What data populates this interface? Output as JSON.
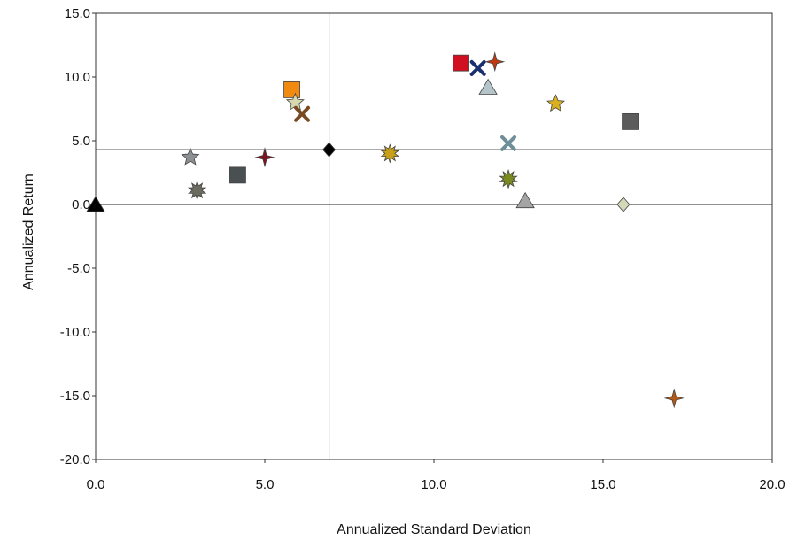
{
  "chart_data": {
    "type": "scatter",
    "title": "",
    "xlabel": "Annualized Standard Deviation",
    "ylabel": "Annualized Return",
    "xlim": [
      0,
      20
    ],
    "ylim": [
      -20,
      15
    ],
    "x_ticks": [
      "0.0",
      "5.0",
      "10.0",
      "15.0",
      "20.0"
    ],
    "y_ticks": [
      "15.0",
      "10.0",
      "5.0",
      "0.0",
      "-5.0",
      "-10.0",
      "-15.0",
      "-20.0"
    ],
    "grid": false,
    "legend": "none",
    "reference_lines": {
      "x": 6.9,
      "y": 4.3
    },
    "points": [
      {
        "x": 0.0,
        "y": 0.0,
        "marker": "triangle",
        "color": "#000000"
      },
      {
        "x": 2.8,
        "y": 3.7,
        "marker": "star",
        "color": "#8c9095"
      },
      {
        "x": 3.0,
        "y": 1.1,
        "marker": "burst",
        "color": "#6b6b60"
      },
      {
        "x": 4.2,
        "y": 2.3,
        "marker": "square",
        "color": "#4a4f52"
      },
      {
        "x": 5.0,
        "y": 3.7,
        "marker": "cross4",
        "color": "#7a1420"
      },
      {
        "x": 5.8,
        "y": 9.0,
        "marker": "square",
        "color": "#f08a10"
      },
      {
        "x": 5.9,
        "y": 8.0,
        "marker": "star",
        "color": "#d8d8b0"
      },
      {
        "x": 6.1,
        "y": 7.1,
        "marker": "x",
        "color": "#7a4a22"
      },
      {
        "x": 6.9,
        "y": 4.3,
        "marker": "diamond",
        "color": "#000000"
      },
      {
        "x": 8.7,
        "y": 4.0,
        "marker": "burst",
        "color": "#c8a018"
      },
      {
        "x": 10.8,
        "y": 11.1,
        "marker": "square",
        "color": "#d01020"
      },
      {
        "x": 11.3,
        "y": 10.7,
        "marker": "x",
        "color": "#1a2f6e"
      },
      {
        "x": 11.8,
        "y": 11.2,
        "marker": "cross4",
        "color": "#c03a10"
      },
      {
        "x": 11.6,
        "y": 9.2,
        "marker": "triangle",
        "color": "#b4c4c8"
      },
      {
        "x": 12.2,
        "y": 4.8,
        "marker": "x",
        "color": "#6e8e9a"
      },
      {
        "x": 12.2,
        "y": 2.0,
        "marker": "burst",
        "color": "#7a8a20"
      },
      {
        "x": 12.7,
        "y": 0.3,
        "marker": "triangle",
        "color": "#a4a4a4"
      },
      {
        "x": 13.6,
        "y": 7.9,
        "marker": "star",
        "color": "#d8b020"
      },
      {
        "x": 15.6,
        "y": 0.0,
        "marker": "diamond",
        "color": "#d4d8b8"
      },
      {
        "x": 15.8,
        "y": 6.5,
        "marker": "square",
        "color": "#5c5c5c"
      },
      {
        "x": 17.1,
        "y": -15.2,
        "marker": "cross4",
        "color": "#b45a16"
      }
    ]
  }
}
